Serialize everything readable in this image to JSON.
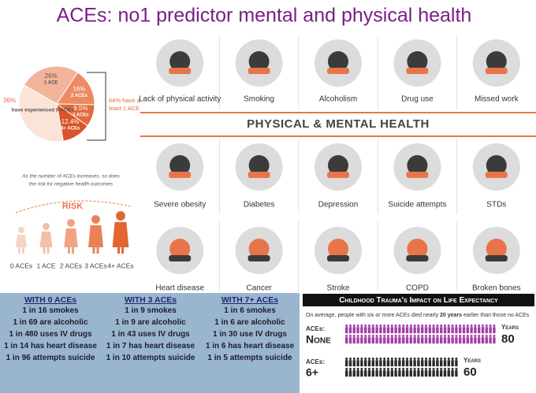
{
  "title": "ACEs: no1 predictor mental and physical health",
  "chart_data": {
    "type": "pie",
    "categories": [
      "1 ACE",
      "2 ACEs",
      "3 ACEs",
      "4+ ACEs",
      "have experienced 0 ACEs"
    ],
    "values": [
      26,
      16,
      9.5,
      12.4,
      36
    ],
    "value_labels": [
      "26%",
      "16%",
      "9.5%",
      "12.4%",
      "36%"
    ],
    "colors": [
      "#f2b49a",
      "#ec8a62",
      "#e36a3c",
      "#d9542a",
      "#fbe3d8"
    ],
    "annotation": "64% have at least 1 ACE"
  },
  "risk": {
    "caption": [
      "As the number of ACEs increases, so does",
      "the risk for negative health outcomes"
    ],
    "label": "RISK",
    "groups": [
      "0 ACEs",
      "1 ACE",
      "2 ACEs",
      "3 ACEs",
      "4+ ACEs"
    ]
  },
  "health": {
    "banner": "PHYSICAL & MENTAL HEALTH",
    "rows": [
      [
        "Lack of physical activity",
        "Smoking",
        "Alcoholism",
        "Drug use",
        "Missed work"
      ],
      [
        "Severe obesity",
        "Diabetes",
        "Depression",
        "Suicide attempts",
        "STDs"
      ],
      [
        "Heart disease",
        "Cancer",
        "Stroke",
        "COPD",
        "Broken bones"
      ]
    ]
  },
  "table": {
    "headers": [
      "WITH 0 ACEs",
      "WITH 3 ACEs",
      "WITH 7+ ACEs"
    ],
    "rows": [
      [
        "1 in 16 smokes",
        "1 in 9 smokes",
        "1 in 6 smokes"
      ],
      [
        "1 in 69 are alcoholic",
        "1 in 9 are alcoholic",
        "1 in 6 are alcoholic"
      ],
      [
        "1 in 480 uses IV drugs",
        "1 in 43 uses IV drugs",
        "1 in 30 use IV drugs"
      ],
      [
        "1 in 14 has heart disease",
        "1 in 7 has heart disease",
        "1 in 6 has heart disease"
      ],
      [
        "1 in 96 attempts suicide",
        "1 in 10 attempts suicide",
        "1 in 5 attempts suicide"
      ]
    ]
  },
  "life_expectancy": {
    "title": "Childhood Trauma's Impact on Life Expectancy",
    "subtitle": [
      "On average, people with six or more ACEs died nearly ",
      "20 years",
      " earlier than those no ACEs"
    ],
    "rows": [
      {
        "aces_label": "ACEs:",
        "aces": "None",
        "years_label": "Years",
        "years": 80,
        "color": "#a23fa6"
      },
      {
        "aces_label": "ACEs:",
        "aces": "6+",
        "years_label": "Years",
        "years": 60,
        "color": "#2a2a2a"
      }
    ]
  }
}
